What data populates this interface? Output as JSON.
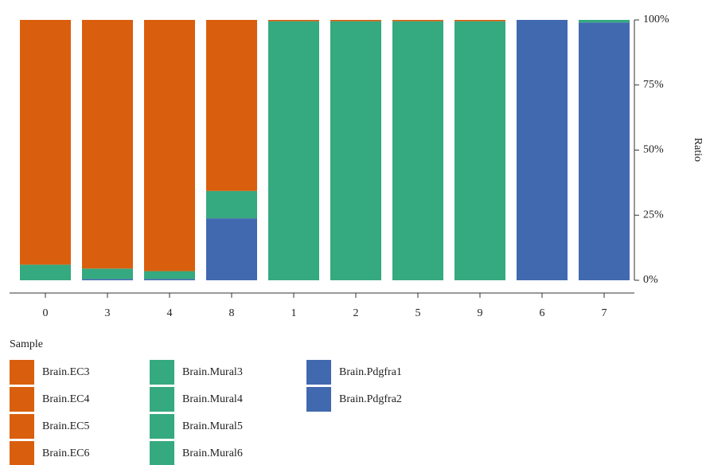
{
  "chart_data": {
    "type": "stacked-bar",
    "categories": [
      "0",
      "3",
      "4",
      "8",
      "1",
      "2",
      "5",
      "9",
      "6",
      "7"
    ],
    "series": [
      {
        "name": "Brain.EC3",
        "color": "#d95f0e",
        "values": [
          94,
          0,
          0,
          0,
          0.5,
          0,
          0,
          0,
          0,
          0
        ]
      },
      {
        "name": "Brain.EC4",
        "color": "#d95f0e",
        "values": [
          0,
          95.5,
          0,
          0,
          0,
          0.5,
          0,
          0,
          0,
          0
        ]
      },
      {
        "name": "Brain.EC5",
        "color": "#d95f0e",
        "values": [
          0,
          0,
          96.5,
          0,
          0,
          0,
          0.5,
          0,
          0,
          0
        ]
      },
      {
        "name": "Brain.EC6",
        "color": "#d95f0e",
        "values": [
          0,
          0,
          0,
          65.7,
          0,
          0,
          0,
          0.5,
          0,
          0
        ]
      },
      {
        "name": "Brain.Mural3",
        "color": "#35a97f",
        "values": [
          6,
          4,
          3,
          10.5,
          99.5,
          0,
          0,
          0,
          0,
          1
        ]
      },
      {
        "name": "Brain.Mural4",
        "color": "#35a97f",
        "values": [
          0,
          0,
          0,
          0,
          0,
          99.5,
          0,
          0,
          0,
          0
        ]
      },
      {
        "name": "Brain.Mural5",
        "color": "#35a97f",
        "values": [
          0,
          0,
          0,
          0,
          0,
          0,
          99.5,
          0,
          0,
          0
        ]
      },
      {
        "name": "Brain.Mural6",
        "color": "#35a97f",
        "values": [
          0,
          0,
          0,
          0,
          0,
          0,
          0,
          99.5,
          0,
          0
        ]
      },
      {
        "name": "Brain.Pdgfra1",
        "color": "#4169b0",
        "values": [
          0,
          0.5,
          0.5,
          23.8,
          0,
          0,
          0,
          0,
          100,
          0
        ]
      },
      {
        "name": "Brain.Pdgfra2",
        "color": "#4169b0",
        "values": [
          0,
          0,
          0,
          0,
          0,
          0,
          0,
          0,
          0,
          99
        ]
      }
    ],
    "ylim": [
      0,
      100
    ],
    "yticks": [
      {
        "value": 0,
        "label": "0%"
      },
      {
        "value": 25,
        "label": "25%"
      },
      {
        "value": 50,
        "label": "50%"
      },
      {
        "value": 75,
        "label": "75%"
      },
      {
        "value": 100,
        "label": "100%"
      }
    ],
    "y_label": "Ratio",
    "legend_title": "Sample"
  }
}
